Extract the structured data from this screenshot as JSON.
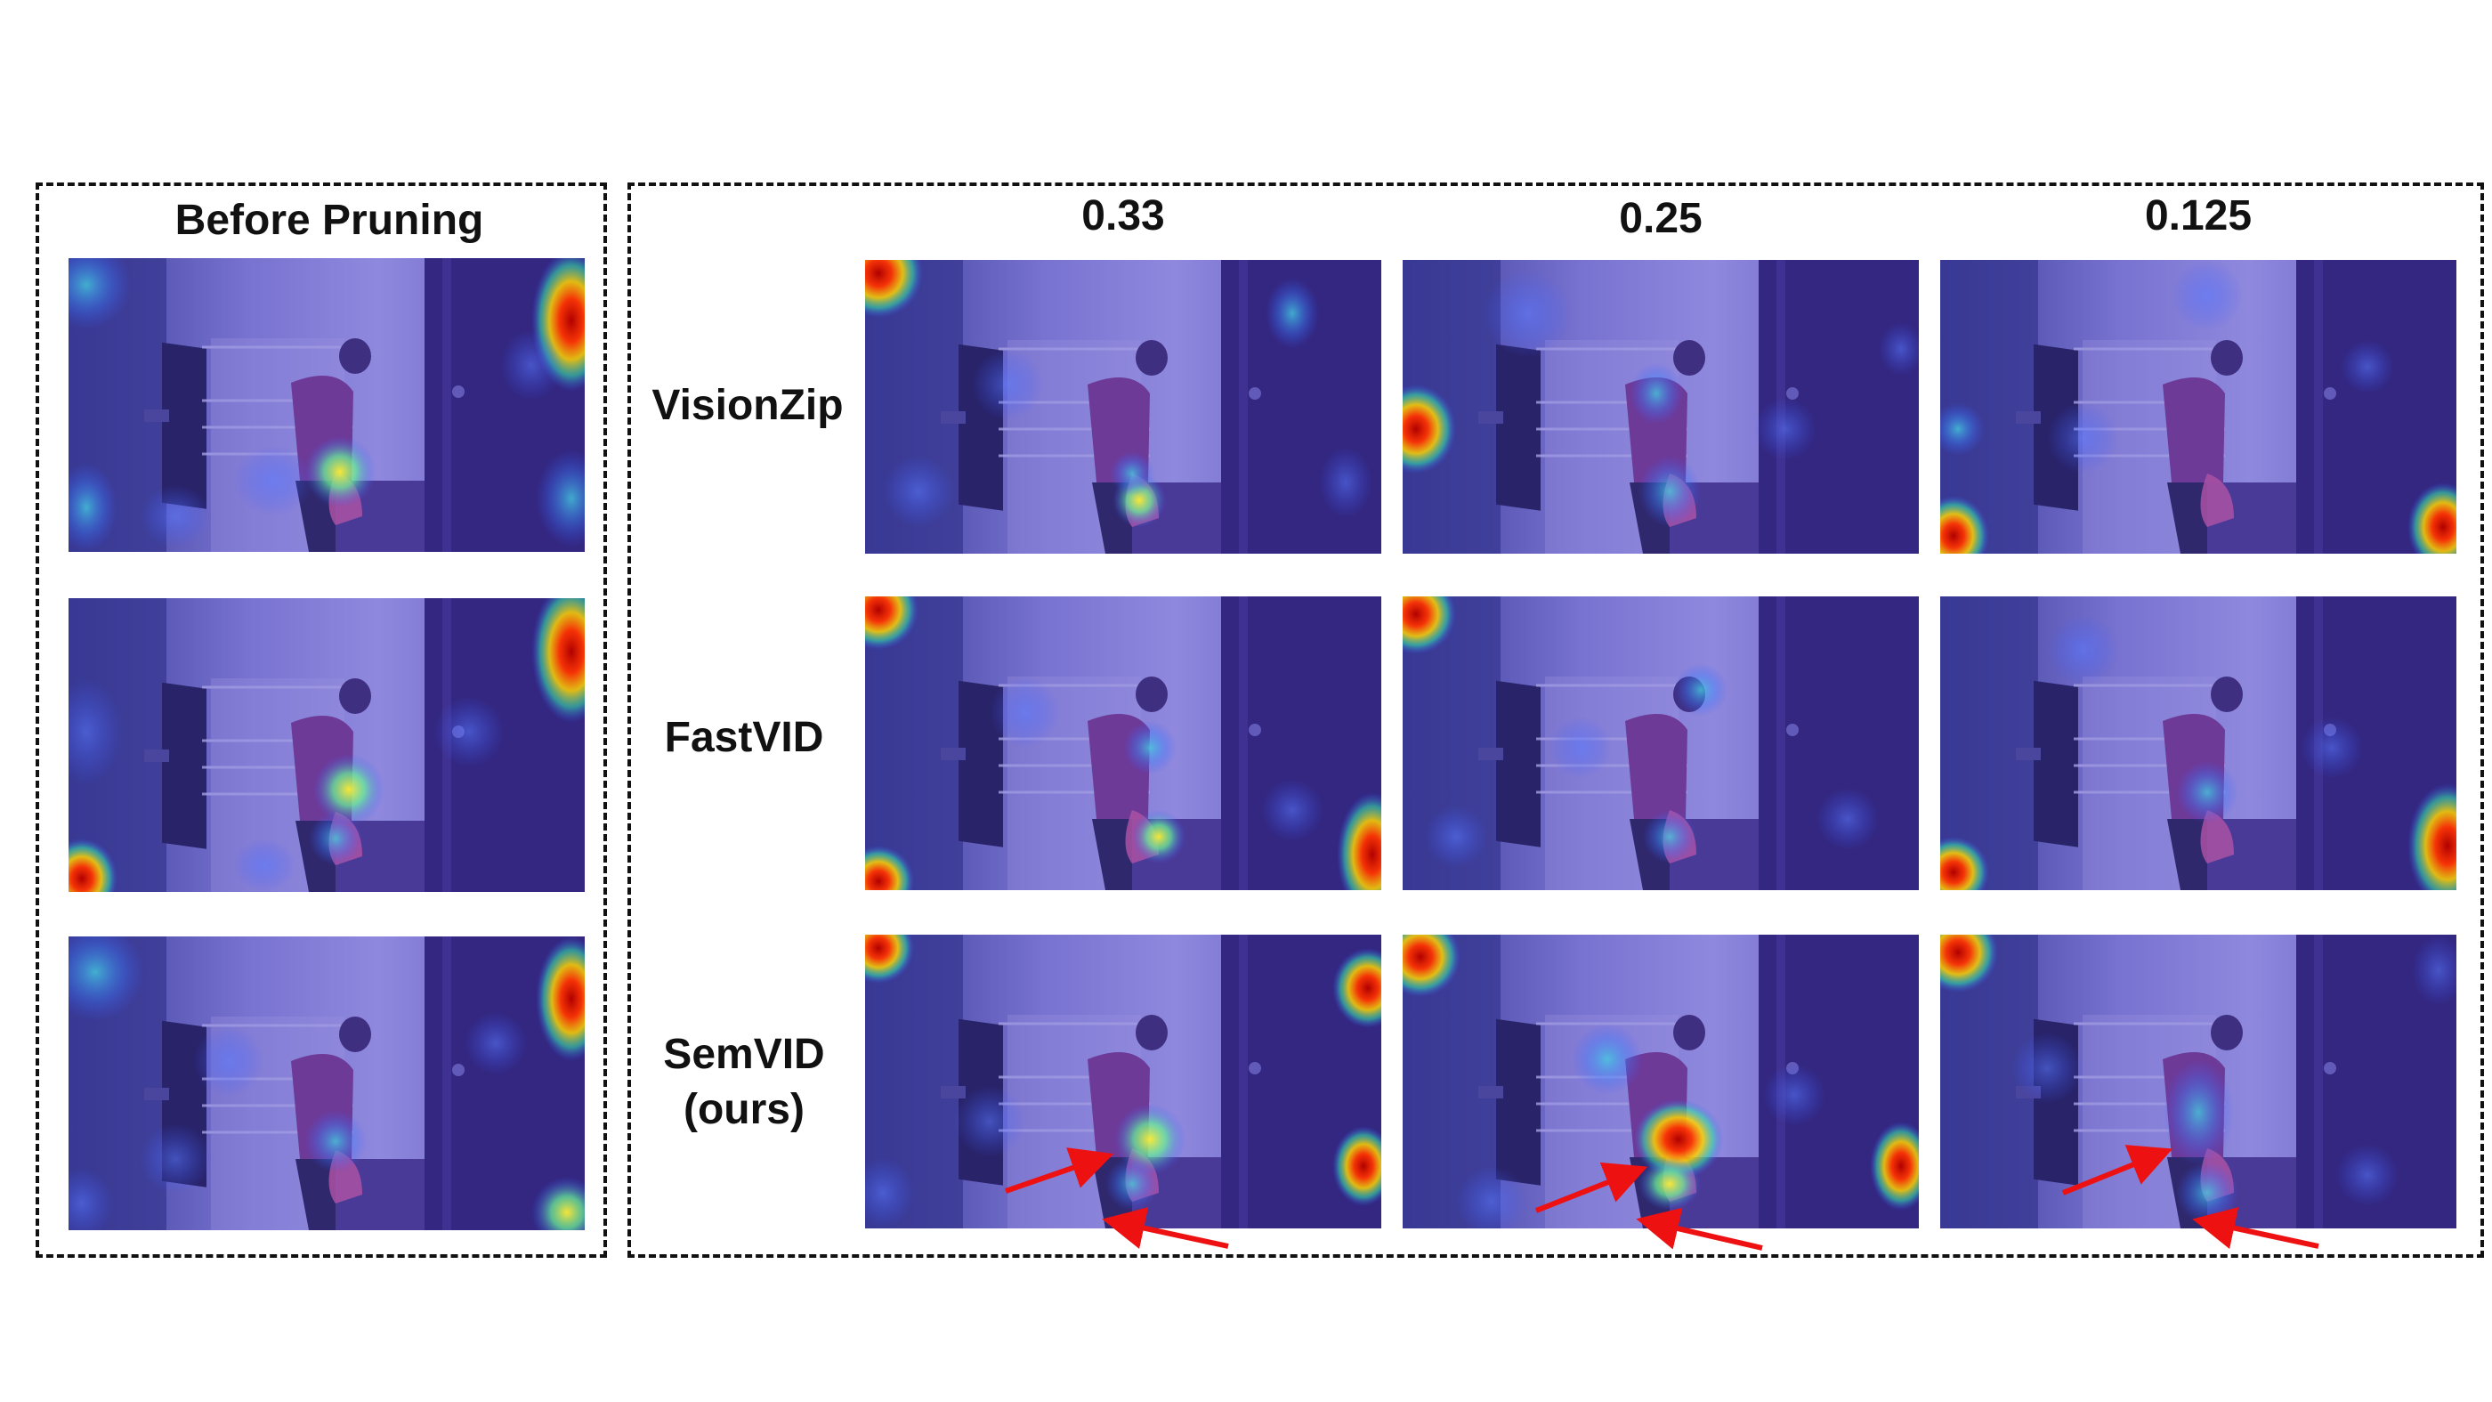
{
  "headers": {
    "before": "Before Pruning",
    "ratios": [
      "0.33",
      "0.25",
      "0.125"
    ]
  },
  "methods": [
    {
      "line1": "VisionZip",
      "line2": ""
    },
    {
      "line1": "FastVID",
      "line2": ""
    },
    {
      "line1": "SemVID",
      "line2": "(ours)"
    }
  ],
  "colors": {
    "border": "#111111",
    "arrow": "#ee1111",
    "heat_hot": "#cc0000",
    "heat_warm": "#ffd400",
    "heat_mid": "#33ddaa",
    "overlay_base": "#4a3ec0"
  }
}
